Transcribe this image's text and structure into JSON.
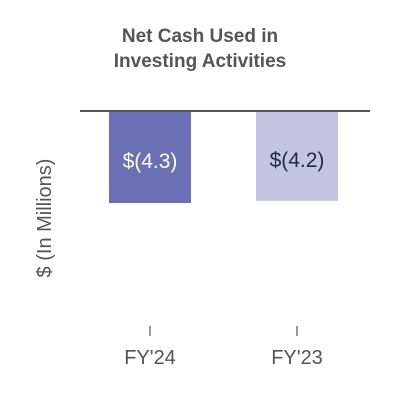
{
  "chart_data": {
    "type": "bar",
    "title_lines": [
      "Net Cash Used in",
      "Investing Activities"
    ],
    "ylabel": "$ (In Millions)",
    "xlabel": "",
    "categories": [
      "FY'24",
      "FY'23"
    ],
    "values": [
      -4.3,
      -4.2
    ],
    "data_labels": [
      "$(4.3)",
      "$(4.2)"
    ],
    "ylim": [
      -10,
      0
    ],
    "grid": false,
    "legend": "none",
    "colors": {
      "bars": [
        "#6b6fb5",
        "#c3c5e3"
      ],
      "data_labels": [
        "#ffffff",
        "#222a4e"
      ],
      "baseline": "#555555",
      "text": "#555555"
    }
  }
}
